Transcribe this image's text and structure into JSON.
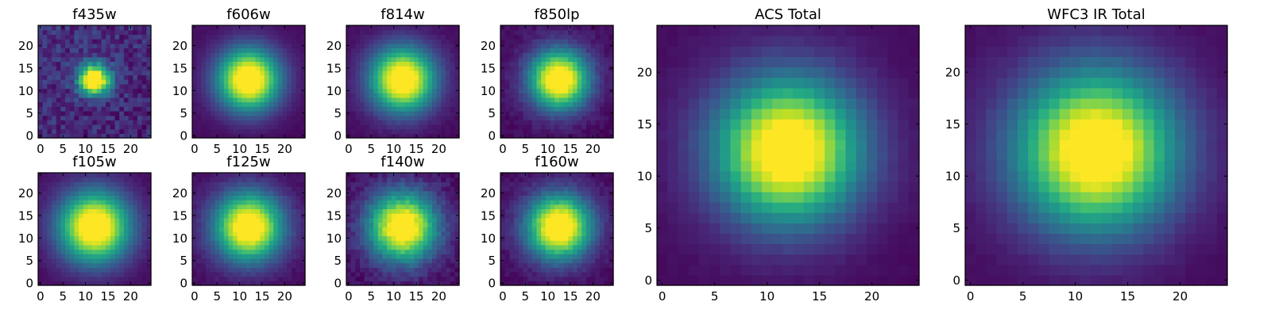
{
  "figure": {
    "colormap": "viridis",
    "colors": {
      "viridis_stops": [
        "#440154",
        "#482475",
        "#414487",
        "#355f8d",
        "#2a788e",
        "#21918c",
        "#22a884",
        "#44bf70",
        "#7ad151",
        "#bddf26",
        "#fde725"
      ],
      "axis": "#000000",
      "background": "#ffffff"
    }
  },
  "chart_data": [
    {
      "type": "heatmap",
      "title": "f435w",
      "grid_size": 25,
      "x_ticks": [
        0,
        5,
        10,
        15,
        20
      ],
      "y_ticks": [
        0,
        5,
        10,
        15,
        20
      ],
      "xlim": [
        -0.5,
        24.5
      ],
      "ylim": [
        -0.5,
        24.5
      ],
      "peak": [
        12,
        12.5
      ],
      "sigma": 2.4,
      "background": 0.08,
      "noise": 0.09,
      "grid": false
    },
    {
      "type": "heatmap",
      "title": "f606w",
      "grid_size": 25,
      "x_ticks": [
        0,
        5,
        10,
        15,
        20
      ],
      "y_ticks": [
        0,
        5,
        10,
        15,
        20
      ],
      "xlim": [
        -0.5,
        24.5
      ],
      "ylim": [
        -0.5,
        24.5
      ],
      "peak": [
        12,
        12.5
      ],
      "sigma": 4.8,
      "background": 0.02,
      "noise": 0.01,
      "grid": false
    },
    {
      "type": "heatmap",
      "title": "f814w",
      "grid_size": 25,
      "x_ticks": [
        0,
        5,
        10,
        15,
        20
      ],
      "y_ticks": [
        0,
        5,
        10,
        15,
        20
      ],
      "xlim": [
        -0.5,
        24.5
      ],
      "ylim": [
        -0.5,
        24.5
      ],
      "peak": [
        12,
        12.5
      ],
      "sigma": 5.0,
      "background": 0.02,
      "noise": 0.015,
      "grid": false
    },
    {
      "type": "heatmap",
      "title": "f850lp",
      "grid_size": 25,
      "x_ticks": [
        0,
        5,
        10,
        15,
        20
      ],
      "y_ticks": [
        0,
        5,
        10,
        15,
        20
      ],
      "xlim": [
        -0.5,
        24.5
      ],
      "ylim": [
        -0.5,
        24.5
      ],
      "peak": [
        12.5,
        12.5
      ],
      "sigma": 4.6,
      "background": 0.02,
      "noise": 0.03,
      "grid": false
    },
    {
      "type": "heatmap",
      "title": "f105w",
      "grid_size": 25,
      "x_ticks": [
        0,
        5,
        10,
        15,
        20
      ],
      "y_ticks": [
        0,
        5,
        10,
        15,
        20
      ],
      "xlim": [
        -0.5,
        24.5
      ],
      "ylim": [
        -0.5,
        24.5
      ],
      "peak": [
        12,
        12.5
      ],
      "sigma": 5.5,
      "background": 0.02,
      "noise": 0.015,
      "grid": false
    },
    {
      "type": "heatmap",
      "title": "f125w",
      "grid_size": 25,
      "x_ticks": [
        0,
        5,
        10,
        15,
        20
      ],
      "y_ticks": [
        0,
        5,
        10,
        15,
        20
      ],
      "xlim": [
        -0.5,
        24.5
      ],
      "ylim": [
        -0.5,
        24.5
      ],
      "peak": [
        12,
        12.5
      ],
      "sigma": 5.3,
      "background": 0.02,
      "noise": 0.02,
      "grid": false
    },
    {
      "type": "heatmap",
      "title": "f140w",
      "grid_size": 25,
      "x_ticks": [
        0,
        5,
        10,
        15,
        20
      ],
      "y_ticks": [
        0,
        5,
        10,
        15,
        20
      ],
      "xlim": [
        -0.5,
        24.5
      ],
      "ylim": [
        -0.5,
        24.5
      ],
      "peak": [
        12,
        12.5
      ],
      "sigma": 5.3,
      "background": 0.02,
      "noise": 0.045,
      "grid": false
    },
    {
      "type": "heatmap",
      "title": "f160w",
      "grid_size": 25,
      "x_ticks": [
        0,
        5,
        10,
        15,
        20
      ],
      "y_ticks": [
        0,
        5,
        10,
        15,
        20
      ],
      "xlim": [
        -0.5,
        24.5
      ],
      "ylim": [
        -0.5,
        24.5
      ],
      "peak": [
        12.5,
        12.5
      ],
      "sigma": 5.0,
      "background": 0.02,
      "noise": 0.03,
      "grid": false
    },
    {
      "type": "heatmap",
      "title": "ACS Total",
      "grid_size": 25,
      "x_ticks": [
        0,
        5,
        10,
        15,
        20
      ],
      "y_ticks": [
        0,
        5,
        10,
        15,
        20
      ],
      "xlim": [
        -0.5,
        24.5
      ],
      "ylim": [
        -0.5,
        24.5
      ],
      "peak": [
        12,
        12.5
      ],
      "sigma": 4.8,
      "background": 0.02,
      "noise": 0.01,
      "grid": false
    },
    {
      "type": "heatmap",
      "title": "WFC3 IR Total",
      "grid_size": 25,
      "x_ticks": [
        0,
        5,
        10,
        15,
        20
      ],
      "y_ticks": [
        0,
        5,
        10,
        15,
        20
      ],
      "xlim": [
        -0.5,
        24.5
      ],
      "ylim": [
        -0.5,
        24.5
      ],
      "peak": [
        12,
        12.5
      ],
      "sigma": 5.3,
      "background": 0.02,
      "noise": 0.01,
      "grid": false
    }
  ]
}
